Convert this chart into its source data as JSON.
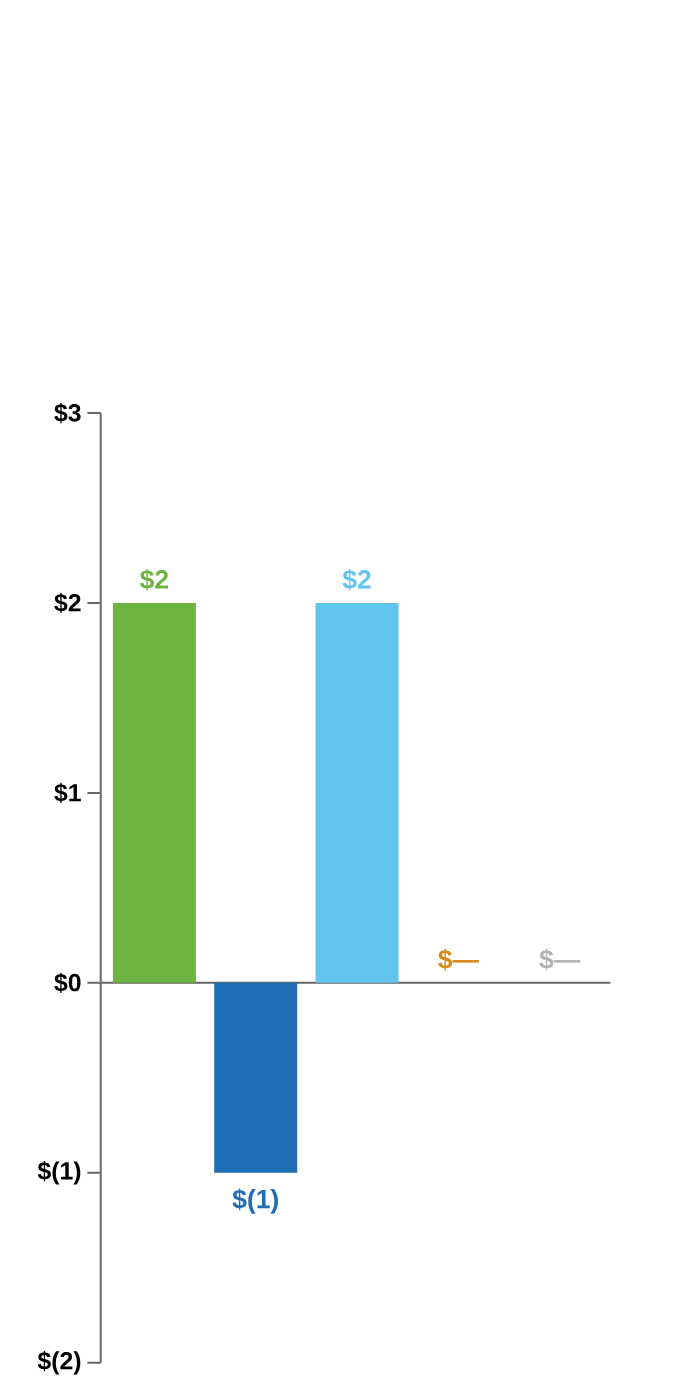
{
  "chart_data": {
    "type": "bar",
    "categories": [
      null,
      null,
      null,
      null,
      null
    ],
    "values": [
      2,
      -1,
      2,
      0,
      0
    ],
    "colors": [
      "#6db33f",
      "#1f6db5",
      "#62c5f0",
      "#d98b1e",
      "#b3b3b3"
    ],
    "value_labels": [
      "$2",
      "$(1)",
      "$2",
      "$—",
      "$—"
    ],
    "ylim": [
      -2,
      3
    ],
    "yticks": [
      {
        "value": 3,
        "label": "$3"
      },
      {
        "value": 2,
        "label": "$2"
      },
      {
        "value": 1,
        "label": "$1"
      },
      {
        "value": 0,
        "label": "$0"
      },
      {
        "value": -1,
        "label": "$(1)"
      },
      {
        "value": -2,
        "label": "$(2)"
      }
    ]
  }
}
